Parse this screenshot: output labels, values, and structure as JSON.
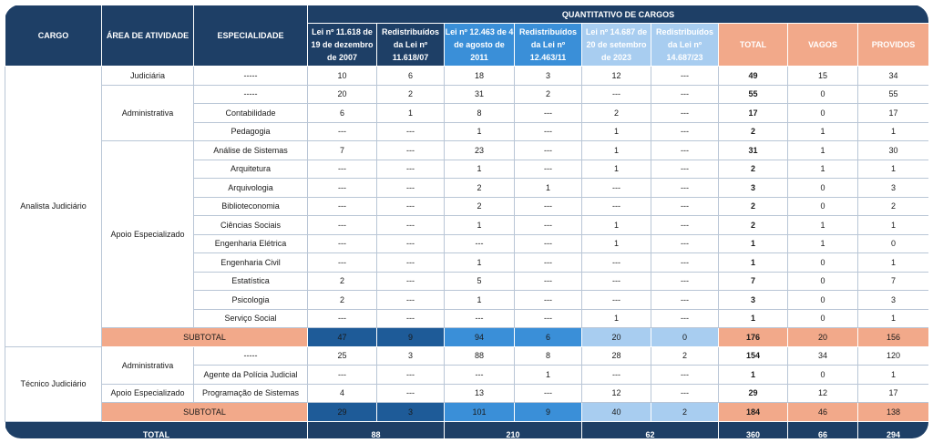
{
  "headers": {
    "cargo": "CARGO",
    "area": "ÁREA DE ATIVIDADE",
    "especialidade": "ESPECIALIDADE",
    "quantitativo": "QUANTITATIVO DE CARGOS",
    "lei1": "Lei nº 11.618 de 19 de dezembro de 2007",
    "red1": "Redistribuídos da Lei nº 11.618/07",
    "lei2": "Lei nº 12.463 de 4 de agosto de 2011",
    "red2": "Redistribuídos da Lei nº 12.463/11",
    "lei3": "Lei nº 14.687 de 20 de setembro de 2023",
    "red3": "Redistribuídos da Lei nº 14.687/23",
    "total": "TOTAL",
    "vagos": "VAGOS",
    "providos": "PROVIDOS"
  },
  "analista": {
    "cargo": "Analista Judiciário",
    "judiciaria": {
      "area": "Judiciária",
      "row": {
        "esp": "-----",
        "v": [
          "10",
          "6",
          "18",
          "3",
          "12",
          "---"
        ],
        "total": "49",
        "vagos": "15",
        "providos": "34"
      }
    },
    "administrativa": {
      "area": "Administrativa",
      "rows": [
        {
          "esp": "-----",
          "v": [
            "20",
            "2",
            "31",
            "2",
            "---",
            "---"
          ],
          "total": "55",
          "vagos": "0",
          "providos": "55"
        },
        {
          "esp": "Contabilidade",
          "v": [
            "6",
            "1",
            "8",
            "---",
            "2",
            "---"
          ],
          "total": "17",
          "vagos": "0",
          "providos": "17"
        },
        {
          "esp": "Pedagogia",
          "v": [
            "---",
            "---",
            "1",
            "---",
            "1",
            "---"
          ],
          "total": "2",
          "vagos": "1",
          "providos": "1"
        }
      ]
    },
    "apoio": {
      "area": "Apoio Especializado",
      "rows": [
        {
          "esp": "Análise de Sistemas",
          "v": [
            "7",
            "---",
            "23",
            "---",
            "1",
            "---"
          ],
          "total": "31",
          "vagos": "1",
          "providos": "30"
        },
        {
          "esp": "Arquitetura",
          "v": [
            "---",
            "---",
            "1",
            "---",
            "1",
            "---"
          ],
          "total": "2",
          "vagos": "1",
          "providos": "1"
        },
        {
          "esp": "Arquivologia",
          "v": [
            "---",
            "---",
            "2",
            "1",
            "---",
            "---"
          ],
          "total": "3",
          "vagos": "0",
          "providos": "3"
        },
        {
          "esp": "Biblioteconomia",
          "v": [
            "---",
            "---",
            "2",
            "---",
            "---",
            "---"
          ],
          "total": "2",
          "vagos": "0",
          "providos": "2"
        },
        {
          "esp": "Ciências Sociais",
          "v": [
            "---",
            "---",
            "1",
            "---",
            "1",
            "---"
          ],
          "total": "2",
          "vagos": "1",
          "providos": "1"
        },
        {
          "esp": "Engenharia Elétrica",
          "v": [
            "---",
            "---",
            "---",
            "---",
            "1",
            "---"
          ],
          "total": "1",
          "vagos": "1",
          "providos": "0"
        },
        {
          "esp": "Engenharia Civil",
          "v": [
            "---",
            "---",
            "1",
            "---",
            "---",
            "---"
          ],
          "total": "1",
          "vagos": "0",
          "providos": "1"
        },
        {
          "esp": "Estatística",
          "v": [
            "2",
            "---",
            "5",
            "---",
            "---",
            "---"
          ],
          "total": "7",
          "vagos": "0",
          "providos": "7"
        },
        {
          "esp": "Psicologia",
          "v": [
            "2",
            "---",
            "1",
            "---",
            "---",
            "---"
          ],
          "total": "3",
          "vagos": "0",
          "providos": "3"
        },
        {
          "esp": "Serviço Social",
          "v": [
            "---",
            "---",
            "---",
            "---",
            "1",
            "---"
          ],
          "total": "1",
          "vagos": "0",
          "providos": "1"
        }
      ]
    },
    "subtotal": {
      "label": "SUBTOTAL",
      "v": [
        "47",
        "9",
        "94",
        "6",
        "20",
        "0"
      ],
      "total": "176",
      "vagos": "20",
      "providos": "156"
    }
  },
  "tecnico": {
    "cargo": "Técnico Judiciário",
    "administrativa": {
      "area": "Administrativa",
      "rows": [
        {
          "esp": "-----",
          "v": [
            "25",
            "3",
            "88",
            "8",
            "28",
            "2"
          ],
          "total": "154",
          "vagos": "34",
          "providos": "120"
        },
        {
          "esp": "Agente da Polícia Judicial",
          "v": [
            "---",
            "---",
            "---",
            "1",
            "---",
            "---"
          ],
          "total": "1",
          "vagos": "0",
          "providos": "1"
        }
      ]
    },
    "apoio": {
      "area": "Apoio Especializado",
      "row": {
        "esp": "Programação de Sistemas",
        "v": [
          "4",
          "---",
          "13",
          "---",
          "12",
          "---"
        ],
        "total": "29",
        "vagos": "12",
        "providos": "17"
      }
    },
    "subtotal": {
      "label": "SUBTOTAL",
      "v": [
        "29",
        "3",
        "101",
        "9",
        "40",
        "2"
      ],
      "total": "184",
      "vagos": "46",
      "providos": "138"
    }
  },
  "footer": {
    "label": "TOTAL",
    "lei1": "88",
    "lei2": "210",
    "lei3": "62",
    "total": "360",
    "vagos": "66",
    "providos": "294"
  }
}
